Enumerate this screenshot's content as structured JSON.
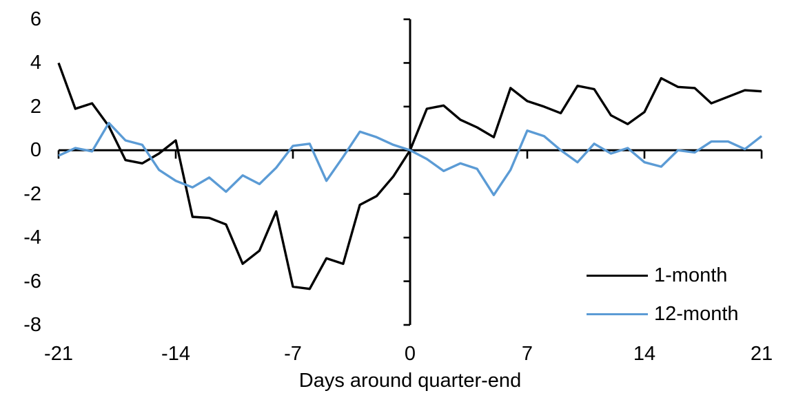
{
  "chart_data": {
    "type": "line",
    "xlabel": "Days around quarter-end",
    "x": [
      -21,
      -20,
      -19,
      -18,
      -17,
      -16,
      -15,
      -14,
      -13,
      -12,
      -11,
      -10,
      -9,
      -8,
      -7,
      -6,
      -5,
      -4,
      -3,
      -2,
      -1,
      0,
      1,
      2,
      3,
      4,
      5,
      6,
      7,
      8,
      9,
      10,
      11,
      12,
      13,
      14,
      15,
      16,
      17,
      18,
      19,
      20,
      21
    ],
    "series": [
      {
        "name": "1-month",
        "color": "#000000",
        "values": [
          4.0,
          1.9,
          2.15,
          1.1,
          -0.45,
          -0.6,
          -0.15,
          0.45,
          -3.05,
          -3.1,
          -3.4,
          -5.2,
          -4.6,
          -2.8,
          -6.25,
          -6.35,
          -4.95,
          -5.2,
          -2.5,
          -2.1,
          -1.2,
          0,
          1.9,
          2.05,
          1.4,
          1.05,
          0.6,
          2.85,
          2.25,
          2.0,
          1.7,
          2.95,
          2.8,
          1.6,
          1.2,
          1.75,
          3.3,
          2.9,
          2.85,
          2.15,
          2.45,
          2.75,
          2.7
        ]
      },
      {
        "name": "12-month",
        "color": "#5B9BD5",
        "values": [
          -0.25,
          0.1,
          -0.05,
          1.25,
          0.45,
          0.25,
          -0.9,
          -1.4,
          -1.7,
          -1.25,
          -1.9,
          -1.15,
          -1.55,
          -0.8,
          0.2,
          0.3,
          -1.4,
          -0.3,
          0.85,
          0.6,
          0.25,
          0,
          -0.4,
          -0.95,
          -0.6,
          -0.85,
          -2.05,
          -0.9,
          0.9,
          0.65,
          0,
          -0.55,
          0.3,
          -0.15,
          0.1,
          -0.55,
          -0.75,
          0,
          -0.1,
          0.4,
          0.4,
          0.05,
          0.65
        ]
      }
    ],
    "x_ticks": [
      -21,
      -14,
      -7,
      0,
      7,
      14,
      21
    ],
    "y_ticks": [
      6,
      4,
      2,
      0,
      -2,
      -4,
      -6,
      -8
    ],
    "xlim": [
      -21,
      21
    ],
    "ylim": [
      -8,
      6
    ],
    "grid": false,
    "legend_position": "bottom-right-inside"
  }
}
